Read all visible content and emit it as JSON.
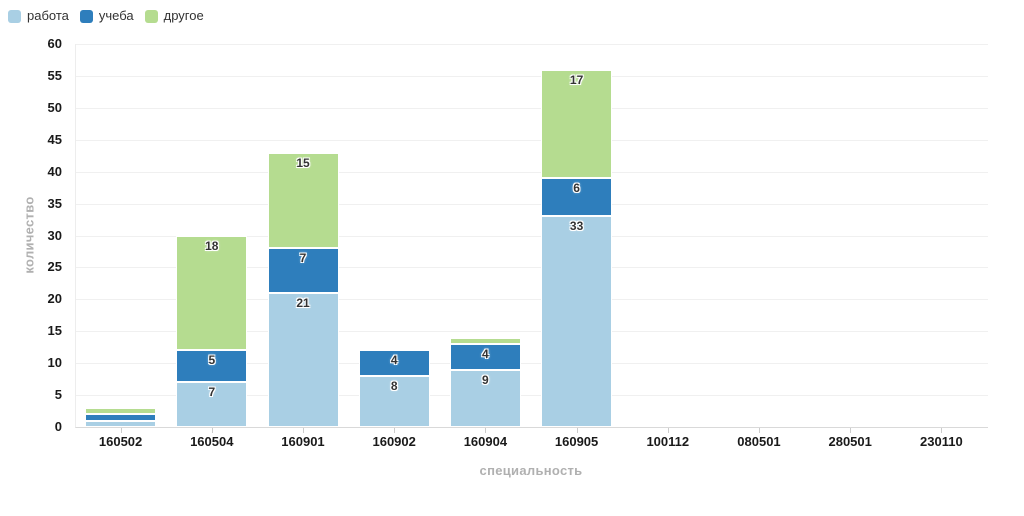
{
  "chart_data": {
    "type": "bar",
    "variant": "stacked-vertical",
    "title": "",
    "xlabel": "специальность",
    "ylabel": "количество",
    "categories": [
      "160502",
      "160504",
      "160901",
      "160902",
      "160904",
      "160905",
      "100112",
      "080501",
      "280501",
      "230110"
    ],
    "series": [
      {
        "name": "работа",
        "color": "#a9cfe4",
        "values": [
          1,
          7,
          21,
          8,
          9,
          33,
          0,
          0,
          0,
          0
        ]
      },
      {
        "name": "учеба",
        "color": "#2e7ebc",
        "values": [
          1,
          5,
          7,
          4,
          4,
          6,
          0,
          0,
          0,
          0
        ]
      },
      {
        "name": "другое",
        "color": "#b5dc90",
        "values": [
          1,
          18,
          15,
          0,
          1,
          17,
          0,
          0,
          0,
          0
        ]
      }
    ],
    "totals": [
      3,
      30,
      43,
      12,
      14,
      56,
      0,
      0,
      0,
      0
    ],
    "ylim": [
      0,
      60
    ],
    "ytick_step": 5,
    "yticks": [
      0,
      5,
      10,
      15,
      20,
      25,
      30,
      35,
      40,
      45,
      50,
      55,
      60
    ],
    "grid": "horizontal",
    "legend_position": "top-left",
    "bar_label_color": "#333333",
    "bar_labels_shown": "segments taller than ~20px only",
    "background": "#ffffff"
  }
}
